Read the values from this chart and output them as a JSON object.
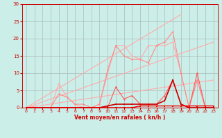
{
  "background_color": "#cceee8",
  "grid_color": "#aabbbb",
  "xlabel": "Vent moyen/en rafales ( kn/h )",
  "xlim": [
    -0.5,
    23.5
  ],
  "ylim": [
    0,
    30
  ],
  "xticks": [
    0,
    1,
    2,
    3,
    4,
    5,
    6,
    7,
    8,
    9,
    10,
    11,
    12,
    13,
    14,
    15,
    16,
    17,
    18,
    19,
    20,
    21,
    22,
    23
  ],
  "yticks": [
    0,
    5,
    10,
    15,
    20,
    25,
    30
  ],
  "lines": [
    {
      "color": "#ffaaaa",
      "lw": 0.8,
      "marker": "D",
      "ms": 1.5,
      "x": [
        0,
        3,
        4,
        5,
        6,
        7,
        8,
        9,
        10,
        11,
        12,
        13,
        14,
        15,
        16,
        17,
        18,
        19,
        20,
        21,
        22,
        23
      ],
      "y": [
        0,
        0,
        7,
        3,
        1,
        0,
        0,
        1,
        10,
        18,
        18,
        15,
        14,
        18,
        18,
        18,
        19,
        10,
        0,
        8,
        0,
        0
      ]
    },
    {
      "color": "#ffaaaa",
      "lw": 0.8,
      "marker": null,
      "ms": 0,
      "x": [
        0,
        19
      ],
      "y": [
        0,
        27
      ]
    },
    {
      "color": "#ffaaaa",
      "lw": 0.8,
      "marker": null,
      "ms": 0,
      "x": [
        0,
        23
      ],
      "y": [
        0,
        19
      ]
    },
    {
      "color": "#ffaaaa",
      "lw": 0.8,
      "marker": null,
      "ms": 0,
      "x": [
        0,
        23
      ],
      "y": [
        0,
        8
      ]
    },
    {
      "color": "#ff8888",
      "lw": 0.8,
      "marker": "D",
      "ms": 1.5,
      "x": [
        0,
        1,
        2,
        3,
        4,
        5,
        6,
        7,
        8,
        9,
        10,
        11,
        12,
        13,
        14,
        15,
        16,
        17,
        18,
        19,
        20,
        21,
        22,
        23
      ],
      "y": [
        0,
        0,
        0,
        0,
        4,
        3,
        1,
        1,
        0,
        1,
        11,
        18,
        15,
        14,
        14,
        13,
        18,
        19,
        22,
        10,
        0,
        8,
        0,
        0
      ]
    },
    {
      "color": "#ff5555",
      "lw": 0.8,
      "marker": "D",
      "ms": 1.5,
      "x": [
        0,
        1,
        2,
        3,
        4,
        5,
        6,
        7,
        8,
        9,
        10,
        11,
        12,
        13,
        14,
        15,
        16,
        17,
        18,
        19,
        20,
        21,
        22,
        23
      ],
      "y": [
        0,
        0,
        0,
        0,
        0,
        0,
        0,
        0,
        0,
        0,
        0,
        6,
        2.5,
        3.5,
        1,
        1,
        1,
        3.5,
        8,
        1,
        0,
        10,
        0,
        0
      ]
    },
    {
      "color": "#cc0000",
      "lw": 1.2,
      "marker": "s",
      "ms": 2,
      "x": [
        0,
        1,
        2,
        3,
        4,
        5,
        6,
        7,
        8,
        9,
        10,
        11,
        12,
        13,
        14,
        15,
        16,
        17,
        18,
        19,
        20,
        21,
        22,
        23
      ],
      "y": [
        0,
        0,
        0,
        0,
        0,
        0,
        0,
        0,
        0,
        0,
        0.5,
        1,
        1,
        1,
        1,
        1,
        1,
        2,
        8,
        1,
        0,
        0,
        0,
        0
      ]
    },
    {
      "color": "#ee0000",
      "lw": 1.0,
      "marker": "s",
      "ms": 1.5,
      "x": [
        0,
        1,
        2,
        3,
        4,
        5,
        6,
        7,
        8,
        9,
        10,
        11,
        12,
        13,
        14,
        15,
        16,
        17,
        18,
        19,
        20,
        21,
        22,
        23
      ],
      "y": [
        0,
        0,
        0,
        0,
        0,
        0,
        0,
        0,
        0,
        0,
        0,
        0,
        0,
        0,
        0.5,
        0.5,
        0.5,
        0.5,
        0.5,
        0.5,
        0.5,
        0.5,
        0.5,
        0.5
      ]
    }
  ]
}
